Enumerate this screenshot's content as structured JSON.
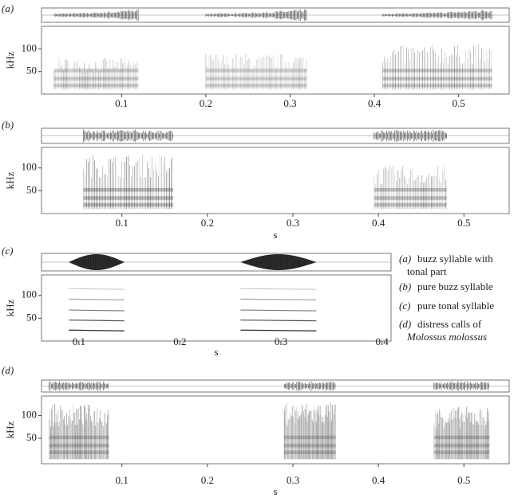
{
  "figure": {
    "panels": [
      {
        "label": "(a)",
        "ylabel": "kHz",
        "xlim": [
          0.005,
          0.56
        ],
        "xticks": [
          0.1,
          0.2,
          0.3,
          0.4,
          0.5
        ],
        "ylim": [
          0,
          150
        ],
        "yticks": [
          50,
          100
        ]
      },
      {
        "label": "(b)",
        "ylabel": "kHz",
        "xlabel": "s",
        "xlim": [
          0.006,
          0.553
        ],
        "xticks": [
          0.1,
          0.2,
          0.3,
          0.4,
          0.5
        ],
        "ylim": [
          0,
          145
        ],
        "yticks": [
          50,
          100
        ]
      },
      {
        "label": "(c)",
        "ylabel": "kHz",
        "xlabel": "s",
        "xlim": [
          0.063,
          0.409
        ],
        "xticks": [
          0.1,
          0.2,
          0.3,
          0.4
        ],
        "ylim": [
          0,
          145
        ],
        "yticks": [
          50,
          100
        ]
      },
      {
        "label": "(d)",
        "ylabel": "kHz",
        "xlabel": "s",
        "xlim": [
          0.006,
          0.553
        ],
        "xticks": [
          0.1,
          0.2,
          0.3,
          0.4,
          0.5
        ],
        "ylim": [
          -6,
          143
        ],
        "yticks": [
          50,
          100
        ]
      }
    ],
    "legend": [
      {
        "label": "(a)",
        "lines": [
          "buzz syllable with",
          "tonal part"
        ]
      },
      {
        "label": "(b)",
        "lines": [
          "pure buzz syllable"
        ]
      },
      {
        "label": "(c)",
        "lines": [
          "pure tonal syllable"
        ]
      },
      {
        "label": "(d)",
        "lines": [
          "distress calls of",
          "Molossus molossus"
        ]
      }
    ]
  }
}
